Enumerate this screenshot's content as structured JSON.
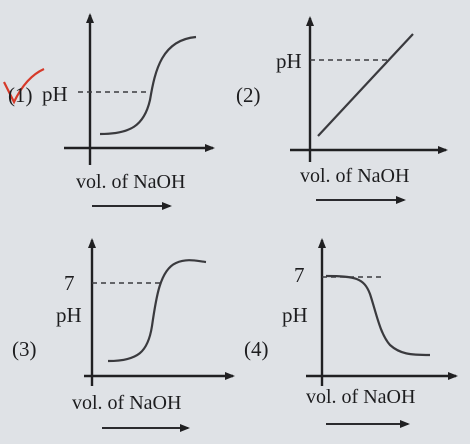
{
  "options": [
    {
      "number": "(1)",
      "y_label": "pH",
      "y_tick": "",
      "x_label": "vol. of NaOH",
      "curve": "rising-sigmoid",
      "selected": true
    },
    {
      "number": "(2)",
      "y_label": "pH",
      "y_tick": "",
      "x_label": "vol. of NaOH",
      "curve": "straight-line"
    },
    {
      "number": "(3)",
      "y_label": "pH",
      "y_tick": "7",
      "x_label": "vol. of NaOH",
      "curve": "rising-sigmoid"
    },
    {
      "number": "(4)",
      "y_label": "pH",
      "y_tick": "7",
      "x_label": "vol. of NaOH",
      "curve": "falling-sigmoid"
    }
  ],
  "colors": {
    "ink": "#202022",
    "tick_mark": "#d63a2a",
    "background": "#dfe2e6"
  }
}
